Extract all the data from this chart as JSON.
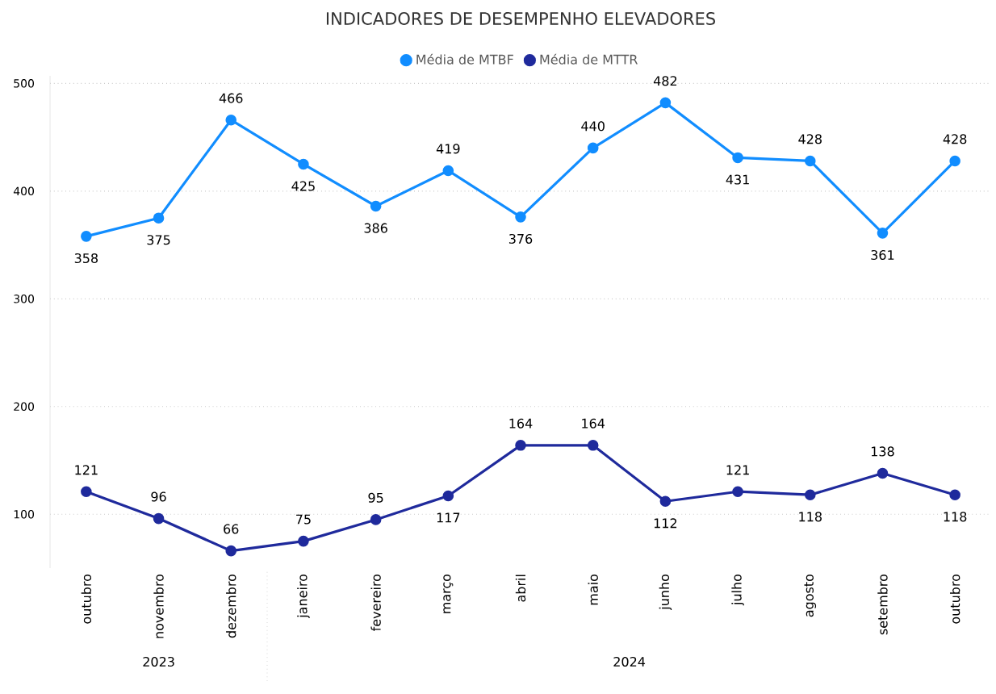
{
  "chart_data": {
    "type": "line",
    "title": "INDICADORES DE DESEMPENHO ELEVADORES",
    "categories": [
      "outubro",
      "novembro",
      "dezembro",
      "janeiro",
      "fevereiro",
      "março",
      "abril",
      "maio",
      "junho",
      "julho",
      "agosto",
      "setembro",
      "outubro"
    ],
    "series": [
      {
        "name": "Média de MTBF",
        "color": "#118dff",
        "values": [
          358,
          375,
          466,
          425,
          386,
          419,
          376,
          440,
          482,
          431,
          428,
          361,
          428
        ]
      },
      {
        "name": "Média de MTTR",
        "color": "#1f2a9c",
        "values": [
          121,
          96,
          66,
          75,
          95,
          117,
          164,
          164,
          112,
          121,
          118,
          138,
          118
        ]
      }
    ],
    "annotations": [
      "2023",
      "2024"
    ],
    "ylim": [
      50,
      507
    ],
    "yticks": [
      100,
      200,
      300,
      400,
      500
    ],
    "grid": "y",
    "legend": "top",
    "marker": "circle",
    "line_style": "solid",
    "data_labels": true
  }
}
